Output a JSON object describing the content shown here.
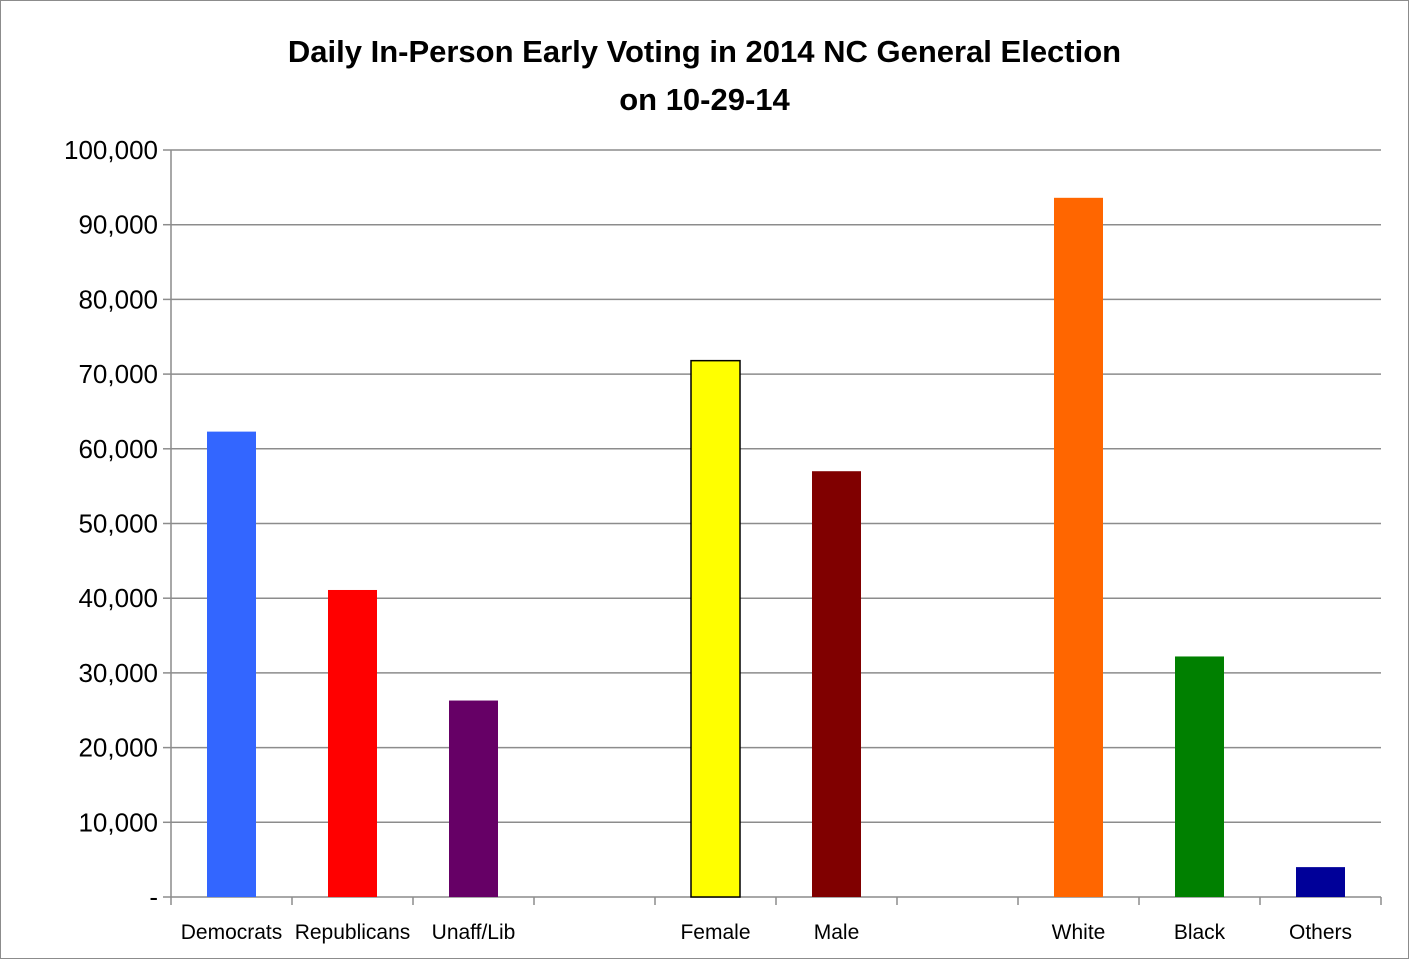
{
  "chart_data": {
    "type": "bar",
    "title_lines": [
      "Daily In-Person Early Voting in 2014 NC General Election",
      "on 10-29-14"
    ],
    "xlabel": "",
    "ylabel": "",
    "ylim": [
      0,
      100000
    ],
    "y_ticks": [
      0,
      10000,
      20000,
      30000,
      40000,
      50000,
      60000,
      70000,
      80000,
      90000,
      100000
    ],
    "y_tick_labels": [
      "-",
      "10,000",
      "20,000",
      "30,000",
      "40,000",
      "50,000",
      "60,000",
      "70,000",
      "80,000",
      "90,000",
      "100,000"
    ],
    "grid": true,
    "legend": "none",
    "categories": [
      "Democrats",
      "Republicans",
      "Unaff/Lib",
      "",
      "Female",
      "Male",
      "",
      "White",
      "Black",
      "Others"
    ],
    "values": [
      62300,
      41100,
      26300,
      null,
      71800,
      57000,
      null,
      93600,
      32200,
      4000
    ],
    "colors": [
      "#3366ff",
      "#ff0000",
      "#660066",
      null,
      "#ffff00",
      "#800000",
      null,
      "#ff6600",
      "#008000",
      "#000099"
    ],
    "outlined": [
      false,
      false,
      false,
      false,
      true,
      false,
      false,
      false,
      false,
      false
    ]
  }
}
